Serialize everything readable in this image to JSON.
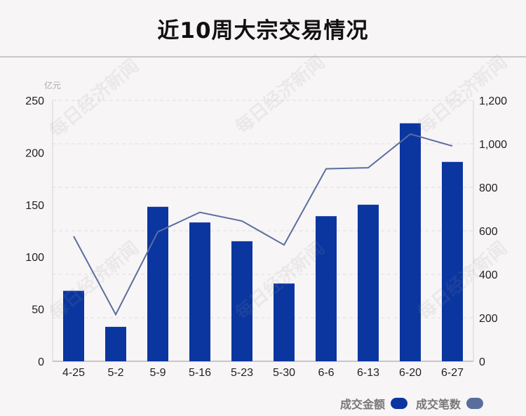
{
  "title": "近10周大宗交易情况",
  "watermark": "每日经济新闻",
  "chart_data": {
    "type": "bar",
    "title": "近10周大宗交易情况",
    "categories": [
      "4-25",
      "5-2",
      "5-9",
      "5-16",
      "5-23",
      "5-30",
      "6-6",
      "6-13",
      "6-20",
      "6-27"
    ],
    "series": [
      {
        "name": "成交金额",
        "type": "bar",
        "axis": "left",
        "color": "#0b36a0",
        "values": [
          67.5,
          33,
          148,
          133,
          115,
          74.5,
          139,
          150,
          228,
          191
        ]
      },
      {
        "name": "成交笔数",
        "type": "line",
        "axis": "right",
        "color": "#5a6e9e",
        "values": [
          575,
          215,
          595,
          685,
          645,
          535,
          885,
          890,
          1045,
          990
        ]
      }
    ],
    "y_left": {
      "label": "亿元",
      "min": 0,
      "max": 250,
      "ticks": [
        "0",
        "50",
        "100",
        "150",
        "200",
        "250"
      ]
    },
    "y_right": {
      "label": "",
      "min": 0,
      "max": 1200,
      "ticks": [
        "0",
        "200",
        "400",
        "600",
        "800",
        "1,000",
        "1,200"
      ]
    },
    "grid": true,
    "legend": "bottom-right"
  }
}
